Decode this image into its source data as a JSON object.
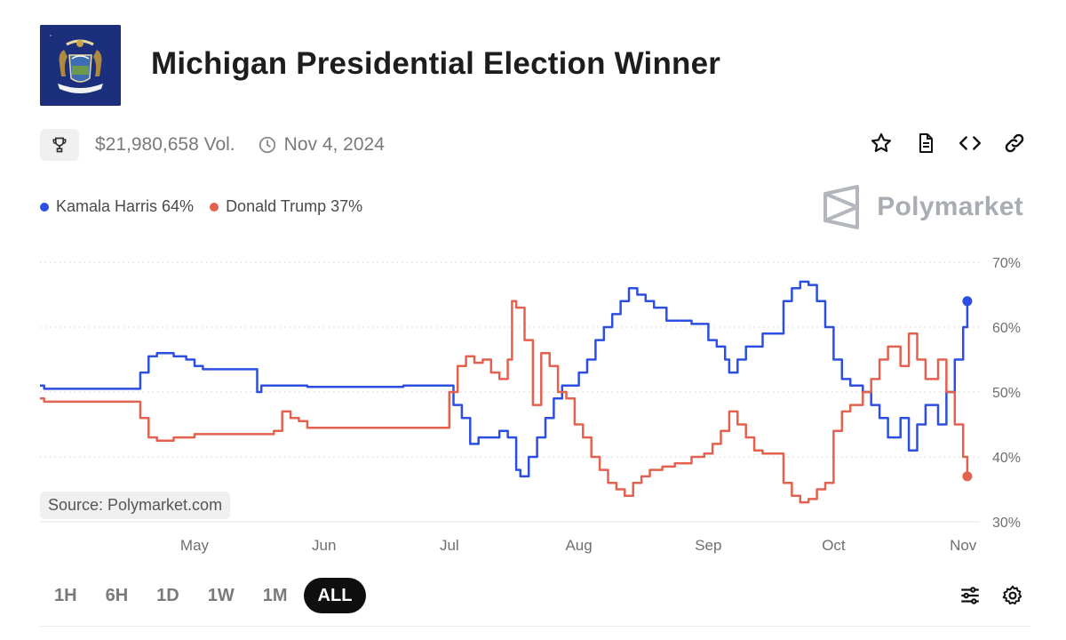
{
  "header": {
    "title": "Michigan Presidential Election Winner",
    "volume": "$21,980,658 Vol.",
    "date": "Nov 4, 2024"
  },
  "icons": {
    "trophy": "trophy-icon",
    "clock": "clock-icon",
    "actions": [
      "star-icon",
      "document-icon",
      "code-icon",
      "link-icon"
    ],
    "tools": [
      "sliders-icon",
      "gear-icon"
    ]
  },
  "brand": {
    "name": "Polymarket"
  },
  "legend": [
    {
      "label": "Kamala Harris 64%",
      "color": "#2d4ee3"
    },
    {
      "label": "Donald Trump 37%",
      "color": "#e4604f"
    }
  ],
  "source": "Source: Polymarket.com",
  "ranges": {
    "items": [
      "1H",
      "6H",
      "1D",
      "1W",
      "1M",
      "ALL"
    ],
    "active": "ALL"
  },
  "chart_data": {
    "type": "line",
    "x_type": "date",
    "xlim": [
      "2024-03-25",
      "2024-11-05"
    ],
    "ylim": [
      30,
      70
    ],
    "y_ticks": [
      "70%",
      "60%",
      "50%",
      "40%",
      "30%"
    ],
    "x_ticks": [
      {
        "label": "May",
        "date": "2024-05-01"
      },
      {
        "label": "Jun",
        "date": "2024-06-01"
      },
      {
        "label": "Jul",
        "date": "2024-07-01"
      },
      {
        "label": "Aug",
        "date": "2024-08-01"
      },
      {
        "label": "Sep",
        "date": "2024-09-01"
      },
      {
        "label": "Oct",
        "date": "2024-10-01"
      },
      {
        "label": "Nov",
        "date": "2024-11-01"
      }
    ],
    "grid": "horizontal-dotted",
    "series": [
      {
        "name": "Kamala Harris",
        "color": "#2d4ee3",
        "points": [
          [
            "2024-03-25",
            51
          ],
          [
            "2024-03-26",
            50.5
          ],
          [
            "2024-04-15",
            50.5
          ],
          [
            "2024-04-18",
            53
          ],
          [
            "2024-04-20",
            55.5
          ],
          [
            "2024-04-22",
            56
          ],
          [
            "2024-04-26",
            55.5
          ],
          [
            "2024-04-29",
            55
          ],
          [
            "2024-05-01",
            54
          ],
          [
            "2024-05-03",
            53.5
          ],
          [
            "2024-05-15",
            53.5
          ],
          [
            "2024-05-16",
            50
          ],
          [
            "2024-05-17",
            51
          ],
          [
            "2024-05-25",
            51
          ],
          [
            "2024-05-28",
            50.8
          ],
          [
            "2024-06-15",
            50.8
          ],
          [
            "2024-06-20",
            51
          ],
          [
            "2024-06-29",
            51
          ],
          [
            "2024-07-02",
            48
          ],
          [
            "2024-07-04",
            46
          ],
          [
            "2024-07-06",
            42
          ],
          [
            "2024-07-08",
            43
          ],
          [
            "2024-07-11",
            43
          ],
          [
            "2024-07-13",
            44
          ],
          [
            "2024-07-15",
            43
          ],
          [
            "2024-07-17",
            38
          ],
          [
            "2024-07-18",
            37
          ],
          [
            "2024-07-20",
            40
          ],
          [
            "2024-07-22",
            43
          ],
          [
            "2024-07-24",
            46
          ],
          [
            "2024-07-26",
            49
          ],
          [
            "2024-07-28",
            51
          ],
          [
            "2024-07-30",
            51
          ],
          [
            "2024-08-01",
            53
          ],
          [
            "2024-08-03",
            55
          ],
          [
            "2024-08-05",
            58
          ],
          [
            "2024-08-07",
            60
          ],
          [
            "2024-08-09",
            62
          ],
          [
            "2024-08-11",
            64
          ],
          [
            "2024-08-13",
            66
          ],
          [
            "2024-08-15",
            65
          ],
          [
            "2024-08-17",
            64
          ],
          [
            "2024-08-19",
            63
          ],
          [
            "2024-08-22",
            61
          ],
          [
            "2024-08-25",
            61
          ],
          [
            "2024-08-28",
            60.5
          ],
          [
            "2024-08-30",
            60.5
          ],
          [
            "2024-09-01",
            58
          ],
          [
            "2024-09-03",
            57
          ],
          [
            "2024-09-05",
            55
          ],
          [
            "2024-09-06",
            53
          ],
          [
            "2024-09-08",
            55
          ],
          [
            "2024-09-10",
            57
          ],
          [
            "2024-09-12",
            57
          ],
          [
            "2024-09-14",
            59
          ],
          [
            "2024-09-17",
            59
          ],
          [
            "2024-09-19",
            64
          ],
          [
            "2024-09-21",
            66
          ],
          [
            "2024-09-23",
            67
          ],
          [
            "2024-09-25",
            66.5
          ],
          [
            "2024-09-27",
            64
          ],
          [
            "2024-09-29",
            60
          ],
          [
            "2024-10-01",
            55
          ],
          [
            "2024-10-03",
            52
          ],
          [
            "2024-10-05",
            51
          ],
          [
            "2024-10-08",
            50
          ],
          [
            "2024-10-10",
            48
          ],
          [
            "2024-10-12",
            46
          ],
          [
            "2024-10-14",
            43
          ],
          [
            "2024-10-17",
            46
          ],
          [
            "2024-10-19",
            41
          ],
          [
            "2024-10-21",
            45
          ],
          [
            "2024-10-23",
            48
          ],
          [
            "2024-10-26",
            45
          ],
          [
            "2024-10-28",
            50
          ],
          [
            "2024-10-30",
            55
          ],
          [
            "2024-11-01",
            60
          ],
          [
            "2024-11-02",
            64
          ]
        ]
      },
      {
        "name": "Donald Trump",
        "color": "#e4604f",
        "points": [
          [
            "2024-03-25",
            49
          ],
          [
            "2024-03-26",
            48.5
          ],
          [
            "2024-04-15",
            48.5
          ],
          [
            "2024-04-18",
            46
          ],
          [
            "2024-04-20",
            43
          ],
          [
            "2024-04-22",
            42.5
          ],
          [
            "2024-04-26",
            43
          ],
          [
            "2024-05-01",
            43.5
          ],
          [
            "2024-05-15",
            43.5
          ],
          [
            "2024-05-20",
            44
          ],
          [
            "2024-05-22",
            47
          ],
          [
            "2024-05-24",
            46
          ],
          [
            "2024-05-26",
            45.5
          ],
          [
            "2024-05-28",
            44.5
          ],
          [
            "2024-06-15",
            44.5
          ],
          [
            "2024-06-20",
            44.5
          ],
          [
            "2024-06-29",
            44.5
          ],
          [
            "2024-07-01",
            50
          ],
          [
            "2024-07-03",
            54
          ],
          [
            "2024-07-05",
            55.5
          ],
          [
            "2024-07-07",
            54.5
          ],
          [
            "2024-07-09",
            55
          ],
          [
            "2024-07-11",
            53
          ],
          [
            "2024-07-13",
            52
          ],
          [
            "2024-07-15",
            55
          ],
          [
            "2024-07-16",
            64
          ],
          [
            "2024-07-17",
            63
          ],
          [
            "2024-07-19",
            58
          ],
          [
            "2024-07-21",
            48
          ],
          [
            "2024-07-23",
            56
          ],
          [
            "2024-07-25",
            54
          ],
          [
            "2024-07-27",
            50
          ],
          [
            "2024-07-29",
            49
          ],
          [
            "2024-07-31",
            45
          ],
          [
            "2024-08-02",
            43
          ],
          [
            "2024-08-04",
            40
          ],
          [
            "2024-08-06",
            38
          ],
          [
            "2024-08-08",
            36
          ],
          [
            "2024-08-10",
            35
          ],
          [
            "2024-08-12",
            34
          ],
          [
            "2024-08-14",
            36
          ],
          [
            "2024-08-16",
            37
          ],
          [
            "2024-08-18",
            38
          ],
          [
            "2024-08-21",
            38.5
          ],
          [
            "2024-08-24",
            39
          ],
          [
            "2024-08-28",
            40
          ],
          [
            "2024-08-31",
            40.5
          ],
          [
            "2024-09-02",
            42
          ],
          [
            "2024-09-04",
            44
          ],
          [
            "2024-09-06",
            47
          ],
          [
            "2024-09-08",
            45
          ],
          [
            "2024-09-10",
            43
          ],
          [
            "2024-09-12",
            41
          ],
          [
            "2024-09-14",
            40.5
          ],
          [
            "2024-09-17",
            40.5
          ],
          [
            "2024-09-19",
            36
          ],
          [
            "2024-09-21",
            34
          ],
          [
            "2024-09-23",
            33
          ],
          [
            "2024-09-25",
            33.5
          ],
          [
            "2024-09-27",
            35
          ],
          [
            "2024-09-29",
            36
          ],
          [
            "2024-10-01",
            44
          ],
          [
            "2024-10-03",
            47
          ],
          [
            "2024-10-05",
            48
          ],
          [
            "2024-10-08",
            50
          ],
          [
            "2024-10-10",
            52
          ],
          [
            "2024-10-12",
            55
          ],
          [
            "2024-10-14",
            57
          ],
          [
            "2024-10-17",
            54
          ],
          [
            "2024-10-19",
            59
          ],
          [
            "2024-10-21",
            55
          ],
          [
            "2024-10-23",
            52
          ],
          [
            "2024-10-26",
            55
          ],
          [
            "2024-10-28",
            50
          ],
          [
            "2024-10-30",
            45
          ],
          [
            "2024-11-01",
            40
          ],
          [
            "2024-11-02",
            37
          ]
        ]
      }
    ]
  }
}
